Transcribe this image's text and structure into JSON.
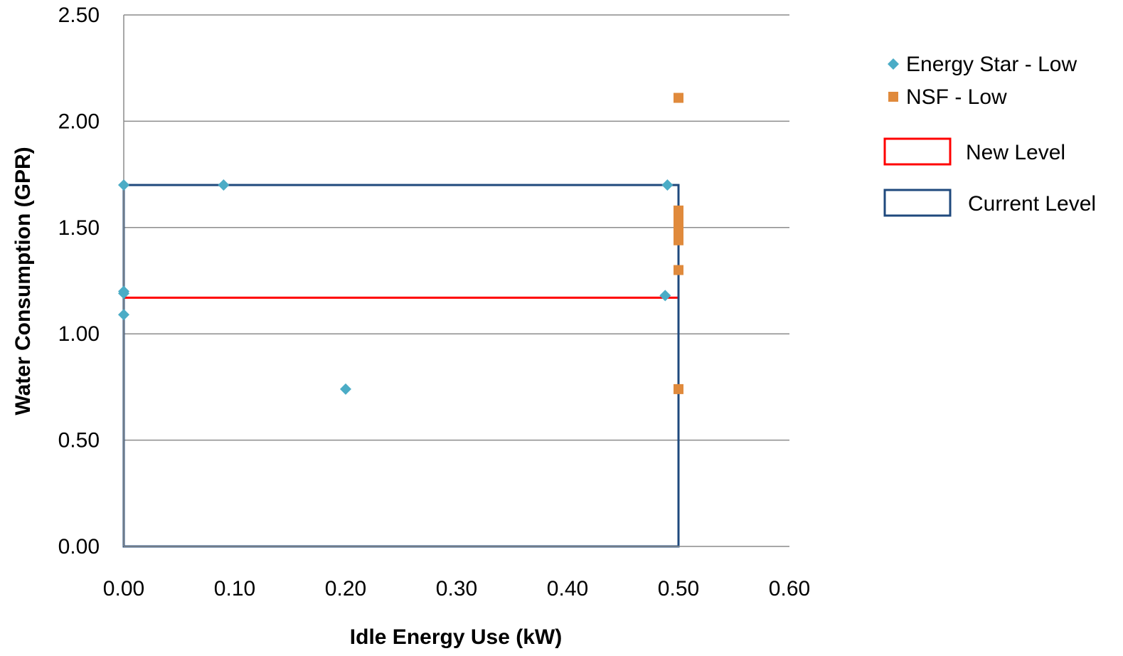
{
  "chart_data": {
    "type": "scatter",
    "xlabel": "Idle Energy Use (kW)",
    "ylabel": "Water Consumption (GPR)",
    "xlim": [
      0,
      0.6
    ],
    "ylim": [
      0,
      2.5
    ],
    "x_ticks": [
      "0.00",
      "0.10",
      "0.20",
      "0.30",
      "0.40",
      "0.50",
      "0.60"
    ],
    "y_ticks": [
      "0.00",
      "0.50",
      "1.00",
      "1.50",
      "2.00",
      "2.50"
    ],
    "grid": "horizontal",
    "legend_position": "right",
    "series": [
      {
        "name": "Energy Star - Low",
        "marker": "diamond",
        "color": "#4BACC6",
        "points": [
          {
            "x": 0.0,
            "y": 1.7
          },
          {
            "x": 0.0,
            "y": 1.2
          },
          {
            "x": 0.0,
            "y": 1.19
          },
          {
            "x": 0.0,
            "y": 1.09
          },
          {
            "x": 0.09,
            "y": 1.7
          },
          {
            "x": 0.2,
            "y": 0.74
          },
          {
            "x": 0.49,
            "y": 1.7
          },
          {
            "x": 0.488,
            "y": 1.18
          }
        ]
      },
      {
        "name": "NSF - Low",
        "marker": "square",
        "color": "#E08A3C",
        "points": [
          {
            "x": 0.5,
            "y": 2.11
          },
          {
            "x": 0.5,
            "y": 1.58
          },
          {
            "x": 0.5,
            "y": 1.55
          },
          {
            "x": 0.5,
            "y": 1.52
          },
          {
            "x": 0.5,
            "y": 1.5
          },
          {
            "x": 0.5,
            "y": 1.47
          },
          {
            "x": 0.5,
            "y": 1.44
          },
          {
            "x": 0.5,
            "y": 1.3
          },
          {
            "x": 0.5,
            "y": 0.74
          }
        ]
      }
    ],
    "regions": [
      {
        "name": "New Level",
        "color": "#FF0000",
        "x": [
          0,
          0.5
        ],
        "y": [
          0,
          1.17
        ]
      },
      {
        "name": "Current Level",
        "color": "#1F497D",
        "x": [
          0,
          0.5
        ],
        "y": [
          0,
          1.7
        ]
      }
    ]
  }
}
